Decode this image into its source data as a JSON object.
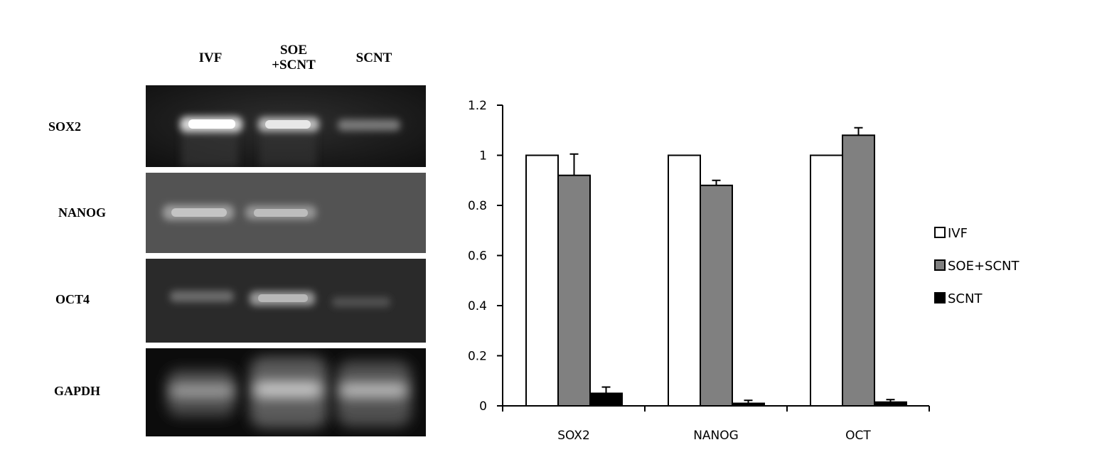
{
  "gel": {
    "lanes": [
      "IVF",
      "SOE\n+SCNT",
      "SCNT"
    ],
    "rows": [
      {
        "gene": "SOX2"
      },
      {
        "gene": "NANOG"
      },
      {
        "gene": "OCT4"
      },
      {
        "gene": "GAPDH"
      }
    ]
  },
  "chart_data": {
    "type": "bar",
    "categories": [
      "SOX2",
      "NANOG",
      "OCT"
    ],
    "series": [
      {
        "name": "IVF",
        "values": [
          1.0,
          1.0,
          1.0
        ],
        "errors": [
          0,
          0,
          0
        ],
        "color": "#ffffff"
      },
      {
        "name": "SOE+SCNT",
        "values": [
          0.92,
          0.88,
          1.08
        ],
        "errors": [
          0.085,
          0.02,
          0.03
        ],
        "color": "#808080"
      },
      {
        "name": "SCNT",
        "values": [
          0.05,
          0.01,
          0.015
        ],
        "errors": [
          0.025,
          0.012,
          0.01
        ],
        "color": "#000000"
      }
    ],
    "ylim": [
      0,
      1.2
    ],
    "yticks": [
      "0",
      "0.2",
      "0.4",
      "0.6",
      "0.8",
      "1",
      "1.2"
    ],
    "legend_position": "right",
    "grid": false,
    "title": "",
    "xlabel": "",
    "ylabel": ""
  }
}
